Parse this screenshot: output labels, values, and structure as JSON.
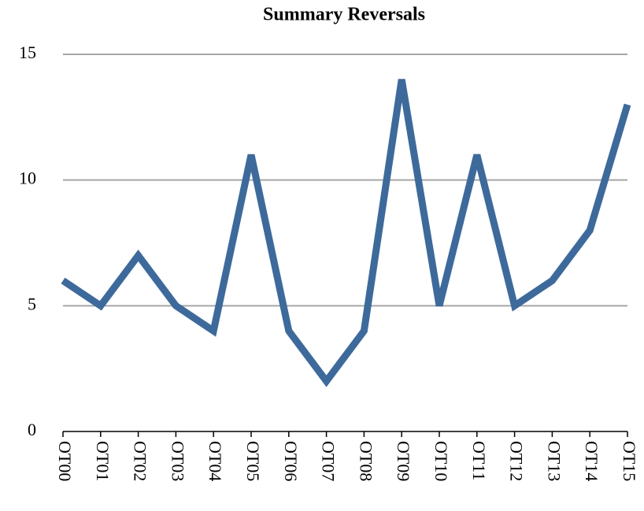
{
  "chart_data": {
    "type": "line",
    "title": "Summary Reversals",
    "categories": [
      "OT00",
      "OT01",
      "OT02",
      "OT03",
      "OT04",
      "OT05",
      "OT06",
      "OT07",
      "OT08",
      "OT09",
      "OT10",
      "OT11",
      "OT12",
      "OT13",
      "OT14",
      "OT15"
    ],
    "series": [
      {
        "name": "Summary Reversals",
        "color": "#3d6a9b",
        "values": [
          6,
          5,
          7,
          5,
          4,
          11,
          4,
          2,
          4,
          14,
          5,
          11,
          5,
          6,
          8,
          13
        ]
      }
    ],
    "ylim": [
      0,
      15
    ],
    "yticks": [
      0,
      5,
      10,
      15
    ],
    "grid": true
  }
}
